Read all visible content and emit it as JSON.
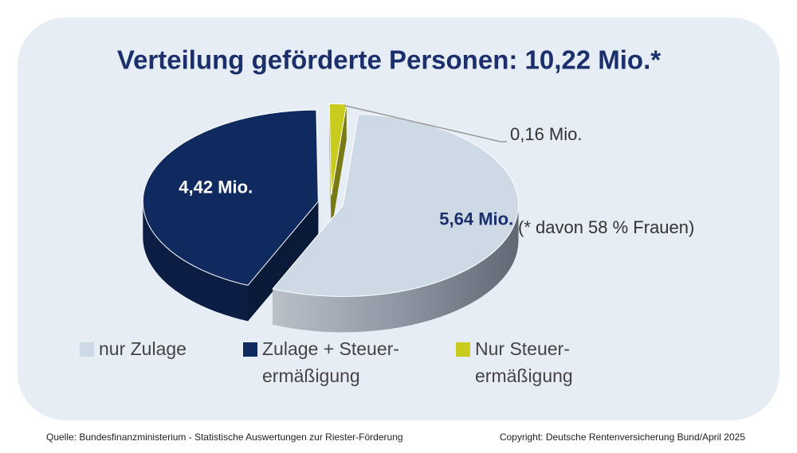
{
  "chart_data": {
    "type": "pie",
    "title": "Verteilung geförderte Personen: 10,22 Mio.*",
    "categories": [
      "nur Zulage",
      "Zulage + Steuer-ermäßigung",
      "Nur Steuer-ermäßigung"
    ],
    "values": [
      5.64,
      4.42,
      0.16
    ],
    "value_labels": [
      "5,64 Mio.",
      "4,42 Mio.",
      "0,16 Mio."
    ],
    "colors": [
      "#cdd9e4",
      "#0f2a5e",
      "#c9cc1f"
    ],
    "note": "(* davon 58 % Frauen)",
    "source": "Quelle: Bundesfinanzministerium - Statistische Auswertungen zur Riester-Förderung",
    "copyright": "Copyright: Deutsche Rentenversicherung Bund/April 2025"
  }
}
